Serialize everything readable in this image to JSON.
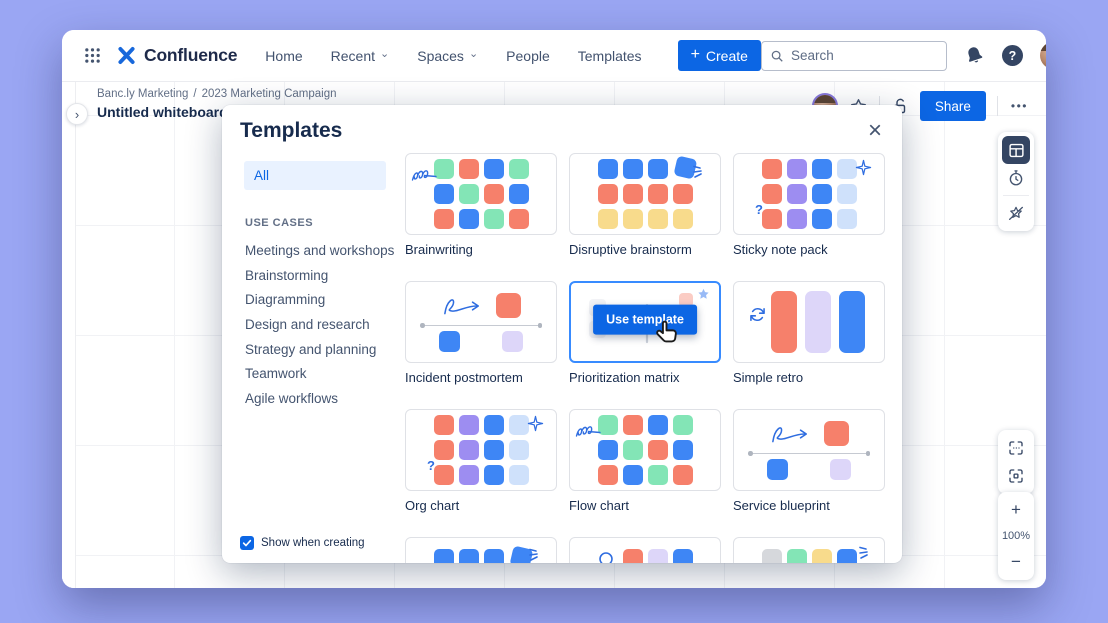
{
  "icons": {
    "plus": "+",
    "minus": "−",
    "close": "×",
    "more": "•••",
    "caret": "⌄",
    "expand": "›",
    "help": "?"
  },
  "palette": {
    "green": "#83E5B6",
    "salmon": "#F6806B",
    "blue": "#3E86F5",
    "yellow": "#F8DB8C",
    "purple": "#9D8DF1",
    "lightblue": "#CFE1FB",
    "lavender": "#DDD6F9",
    "gray": "#D6D8DC",
    "primary": "#0C66E4",
    "logo_blue": "#1868DB",
    "hover_border": "#388BFF",
    "navy": "#344563"
  },
  "nav": {
    "brand": "Confluence",
    "items": [
      {
        "label": "Home",
        "caret": false
      },
      {
        "label": "Recent",
        "caret": true
      },
      {
        "label": "Spaces",
        "caret": true
      },
      {
        "label": "People",
        "caret": false
      },
      {
        "label": "Templates",
        "caret": false
      }
    ],
    "create_label": "Create",
    "search_placeholder": "Search"
  },
  "board": {
    "breadcrumb": [
      "Banc.ly Marketing",
      "2023 Marketing Campaign"
    ],
    "breadcrumb_separator": "/",
    "title": "Untitled whiteboard",
    "share_label": "Share"
  },
  "modal": {
    "title": "Templates",
    "filter_all": "All",
    "sidebar_heading": "USE CASES",
    "sidebar_items": [
      "Meetings and workshops",
      "Brainstorming",
      "Diagramming",
      "Design and research",
      "Strategy and planning",
      "Teamwork",
      "Agile workflows"
    ],
    "show_when_creating": "Show when creating",
    "use_template_label": "Use template",
    "templates": [
      {
        "name": "Brainwriting",
        "thumb": {
          "type": "grid",
          "decor": "squiggle",
          "rows": [
            [
              "green",
              "salmon",
              "blue",
              "green"
            ],
            [
              "blue",
              "green",
              "salmon",
              "blue"
            ],
            [
              "salmon",
              "blue",
              "green",
              "salmon"
            ]
          ]
        }
      },
      {
        "name": "Disruptive brainstorm",
        "thumb": {
          "type": "grid",
          "decor": "tilt",
          "rows": [
            [
              "blue",
              "blue",
              "blue",
              "blue"
            ],
            [
              "salmon",
              "salmon",
              "salmon",
              "salmon"
            ],
            [
              "yellow",
              "yellow",
              "yellow",
              "yellow"
            ]
          ]
        }
      },
      {
        "name": "Sticky note pack",
        "thumb": {
          "type": "grid",
          "decor": "sparkle-question",
          "rows": [
            [
              "salmon",
              "purple",
              "blue",
              "lightblue"
            ],
            [
              "salmon",
              "purple",
              "blue",
              "lightblue"
            ],
            [
              "salmon",
              "purple",
              "blue",
              "lightblue"
            ]
          ]
        }
      },
      {
        "name": "Incident postmortem",
        "thumb": {
          "type": "timeline"
        }
      },
      {
        "name": "Prioritization matrix",
        "thumb": {
          "type": "hover"
        }
      },
      {
        "name": "Simple retro",
        "thumb": {
          "type": "retro",
          "bars": [
            "salmon",
            "lavender",
            "blue"
          ]
        }
      },
      {
        "name": "Org chart",
        "thumb": {
          "type": "grid",
          "decor": "sparkle-question",
          "rows": [
            [
              "salmon",
              "purple",
              "blue",
              "lightblue"
            ],
            [
              "salmon",
              "purple",
              "blue",
              "lightblue"
            ],
            [
              "salmon",
              "purple",
              "blue",
              "lightblue"
            ]
          ]
        }
      },
      {
        "name": "Flow chart",
        "thumb": {
          "type": "grid",
          "decor": "squiggle",
          "rows": [
            [
              "green",
              "salmon",
              "blue",
              "green"
            ],
            [
              "blue",
              "green",
              "salmon",
              "blue"
            ],
            [
              "salmon",
              "blue",
              "green",
              "salmon"
            ]
          ]
        }
      },
      {
        "name": "Service blueprint",
        "thumb": {
          "type": "timeline"
        }
      },
      {
        "name": "",
        "partial": true,
        "thumb": {
          "type": "grid",
          "decor": "tilt",
          "rows": [
            [
              "blue",
              "blue",
              "blue",
              "blue"
            ]
          ]
        }
      },
      {
        "name": "",
        "partial": true,
        "thumb": {
          "type": "grid",
          "decor": "circle",
          "rows": [
            [
              "salmon",
              "lavender",
              "blue"
            ]
          ]
        }
      },
      {
        "name": "",
        "partial": true,
        "thumb": {
          "type": "grid",
          "decor": "spark-right",
          "rows": [
            [
              "gray",
              "green",
              "yellow",
              "blue"
            ]
          ]
        }
      }
    ]
  },
  "zoom_controls": {
    "level": "100%",
    "zoom_in": "+",
    "zoom_out": "−"
  }
}
